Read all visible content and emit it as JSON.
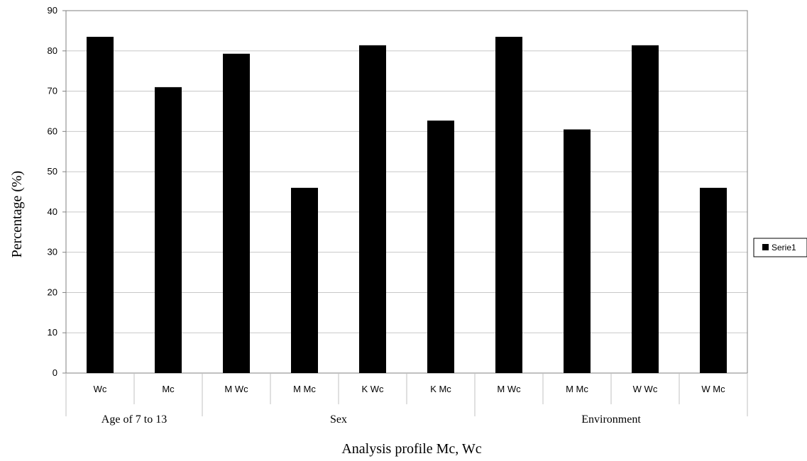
{
  "chart_data": {
    "type": "bar",
    "title": "",
    "xlabel": "Analysis profile Mc, Wc",
    "ylabel": "Percentage (%)",
    "ylim": [
      0,
      90
    ],
    "yticks": [
      0,
      10,
      20,
      30,
      40,
      50,
      60,
      70,
      80,
      90
    ],
    "grid": true,
    "legend_position": "right",
    "categories": [
      "Wc",
      "Mc",
      "M Wc",
      "M Mc",
      "K Wc",
      "K Mc",
      "M Wc",
      "M Mc",
      "W Wc",
      "W Mc"
    ],
    "groups": [
      {
        "label": "Age of 7 to 13",
        "from": 0,
        "to": 1
      },
      {
        "label": "Sex",
        "from": 2,
        "to": 5
      },
      {
        "label": "Environment",
        "from": 6,
        "to": 9
      }
    ],
    "series": [
      {
        "name": "Serie1",
        "color": "#000000",
        "values": [
          83.5,
          71,
          79.3,
          46,
          81.4,
          62.7,
          83.5,
          60.5,
          81.4,
          46
        ]
      }
    ]
  }
}
